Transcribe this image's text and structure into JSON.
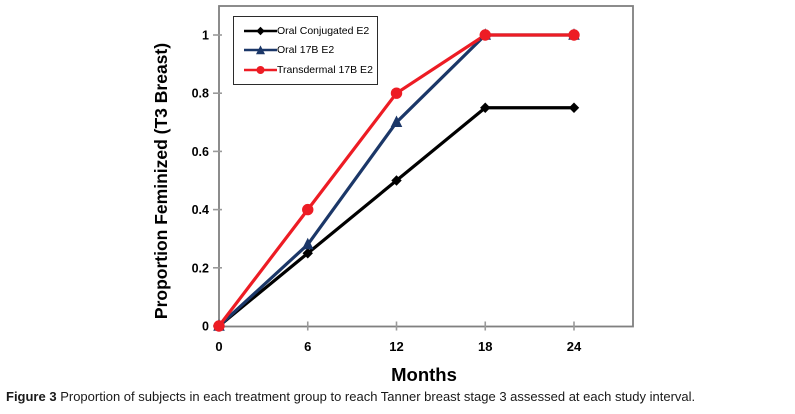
{
  "figure": {
    "caption_label": "Figure 3",
    "caption_text": " Proportion of subjects in each treatment group to reach Tanner breast stage 3 assessed at each study interval."
  },
  "chart_data": {
    "type": "line",
    "title": "",
    "xlabel": "Months",
    "ylabel": "Proportion Feminized (T3 Breast)",
    "x": [
      0,
      6,
      12,
      18,
      24
    ],
    "xtick_labels": [
      "0",
      "6",
      "12",
      "18",
      "24"
    ],
    "yticks": [
      0,
      0.2,
      0.4,
      0.6,
      0.8,
      1
    ],
    "ytick_labels": [
      "0",
      "0.2",
      "0.4",
      "0.6",
      "0.8",
      "1"
    ],
    "xlim": [
      0,
      28
    ],
    "ylim": [
      0,
      1.1
    ],
    "grid": false,
    "legend_position": "top-left",
    "series": [
      {
        "name": "Oral Conjugated E2",
        "marker": "diamond",
        "color": "#000000",
        "values": [
          0,
          0.25,
          0.5,
          0.75,
          0.75
        ]
      },
      {
        "name": "Oral 17B E2",
        "marker": "triangle",
        "color": "#1B3768",
        "values": [
          0,
          0.28,
          0.7,
          1,
          1
        ]
      },
      {
        "name": "Transdermal 17B E2",
        "marker": "circle",
        "color": "#ED1C24",
        "values": [
          0,
          0.4,
          0.8,
          1,
          1
        ]
      }
    ],
    "colors": {
      "plot_border": "#808080",
      "tick": "#9a9a9a",
      "background": "#ffffff",
      "text": "#000000"
    }
  }
}
